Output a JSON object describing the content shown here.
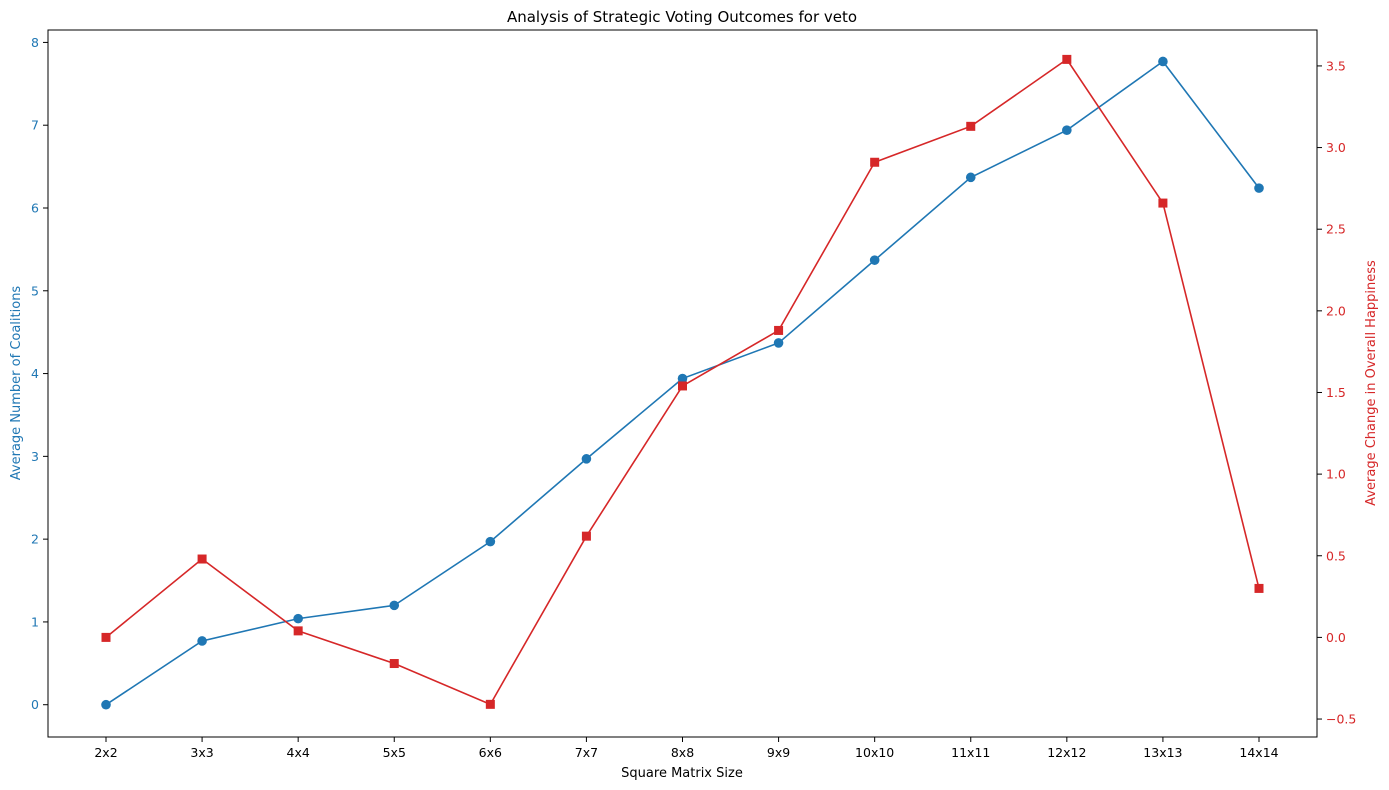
{
  "chart_data": {
    "type": "line",
    "title": "Analysis of Strategic Voting Outcomes for veto",
    "xlabel": "Square Matrix Size",
    "categories": [
      "2x2",
      "3x3",
      "4x4",
      "5x5",
      "6x6",
      "7x7",
      "8x8",
      "9x9",
      "10x10",
      "11x11",
      "12x12",
      "13x13",
      "14x14"
    ],
    "left_axis": {
      "label": "Average Number of Coalitions",
      "color": "#1f77b4",
      "ylim": [
        -0.39,
        8.15
      ],
      "ticks": [
        0,
        1,
        2,
        3,
        4,
        5,
        6,
        7,
        8
      ]
    },
    "right_axis": {
      "label": "Average Change in Overall Happiness",
      "color": "#d62728",
      "ylim": [
        -0.61,
        3.72
      ],
      "ticks": [
        -0.5,
        0.0,
        0.5,
        1.0,
        1.5,
        2.0,
        2.5,
        3.0,
        3.5
      ]
    },
    "series": [
      {
        "axis": "left",
        "color": "#1f77b4",
        "marker": "circle",
        "values": [
          0.0,
          0.77,
          1.04,
          1.2,
          1.97,
          2.97,
          3.94,
          4.37,
          5.37,
          6.37,
          6.94,
          7.77,
          6.24
        ]
      },
      {
        "axis": "right",
        "color": "#d62728",
        "marker": "square",
        "values": [
          0.0,
          0.48,
          0.04,
          -0.16,
          -0.41,
          0.62,
          1.54,
          1.88,
          2.91,
          3.13,
          3.54,
          2.66,
          0.3
        ]
      }
    ],
    "grid": false
  }
}
